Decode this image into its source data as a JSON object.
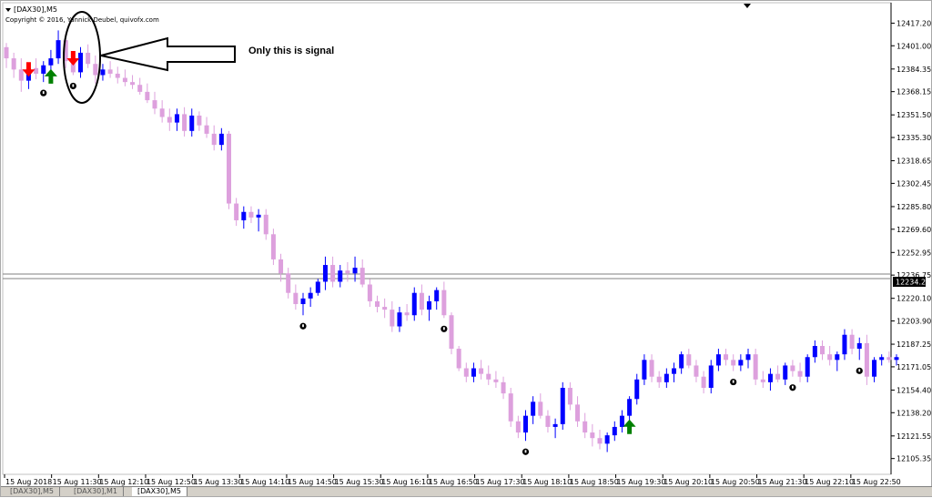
{
  "window": {
    "symbol_label": "[DAX30],M5",
    "copyright": "Copyright © 2016, Yannick Deubel, quivofx.com"
  },
  "annotation": {
    "text": "Only this is signal"
  },
  "tabs": [
    "[DAX30],M5",
    "[DAX30],M1",
    "[DAX30],M5"
  ],
  "colors": {
    "bear_candle": "#dda0dd",
    "bull_candle": "#0000ff",
    "up_arrow": "#008000",
    "down_arrow": "#ff0000",
    "horizontal_line": "#808080",
    "price_tag_bg": "#000000"
  },
  "chart_data": {
    "type": "candlestick",
    "title": "",
    "y_axis": {
      "side": "right",
      "range": [
        12096,
        12424
      ],
      "ticks": [
        "12417.20",
        "12401.00",
        "12384.35",
        "12368.15",
        "12351.50",
        "12335.30",
        "12318.65",
        "12302.45",
        "12285.80",
        "12269.60",
        "12252.95",
        "12236.75",
        "12220.10",
        "12203.90",
        "12187.25",
        "12171.05",
        "12154.40",
        "12138.20",
        "12121.55",
        "12105.35"
      ]
    },
    "x_axis": {
      "labels": [
        "15 Aug 2018",
        "15 Aug 11:30",
        "15 Aug 12:10",
        "15 Aug 12:50",
        "15 Aug 13:30",
        "15 Aug 14:10",
        "15 Aug 14:50",
        "15 Aug 15:30",
        "15 Aug 16:10",
        "15 Aug 16:50",
        "15 Aug 17:30",
        "15 Aug 18:10",
        "15 Aug 18:50",
        "15 Aug 19:30",
        "15 Aug 20:10",
        "15 Aug 20:50",
        "15 Aug 21:30",
        "15 Aug 22:10",
        "15 Aug 22:50"
      ]
    },
    "current_price": "12234.26",
    "horizontal_lines": [
      12237.5,
      12234.26
    ],
    "candles": [
      [
        12400,
        12403,
        12385,
        12392
      ],
      [
        12392,
        12396,
        12378,
        12384
      ],
      [
        12384,
        12392,
        12368,
        12376
      ],
      [
        12376,
        12388,
        12370,
        12385
      ],
      [
        12385,
        12392,
        12377,
        12381
      ],
      [
        12381,
        12390,
        12375,
        12387
      ],
      [
        12387,
        12398,
        12383,
        12392
      ],
      [
        12392,
        12412,
        12388,
        12405
      ],
      [
        12405,
        12410,
        12385,
        12390
      ],
      [
        12390,
        12396,
        12380,
        12382
      ],
      [
        12382,
        12400,
        12378,
        12396
      ],
      [
        12396,
        12402,
        12385,
        12388
      ],
      [
        12388,
        12394,
        12374,
        12380
      ],
      [
        12380,
        12388,
        12376,
        12384
      ],
      [
        12384,
        12390,
        12378,
        12381
      ],
      [
        12381,
        12386,
        12374,
        12378
      ],
      [
        12378,
        12384,
        12372,
        12375
      ],
      [
        12375,
        12380,
        12370,
        12373
      ],
      [
        12373,
        12378,
        12366,
        12368
      ],
      [
        12368,
        12374,
        12360,
        12362
      ],
      [
        12362,
        12368,
        12352,
        12356
      ],
      [
        12356,
        12362,
        12346,
        12350
      ],
      [
        12350,
        12356,
        12340,
        12346
      ],
      [
        12346,
        12356,
        12340,
        12352
      ],
      [
        12352,
        12357,
        12336,
        12340
      ],
      [
        12340,
        12356,
        12336,
        12351
      ],
      [
        12351,
        12354,
        12340,
        12344
      ],
      [
        12344,
        12350,
        12335,
        12338
      ],
      [
        12338,
        12344,
        12326,
        12330
      ],
      [
        12330,
        12342,
        12326,
        12338
      ],
      [
        12338,
        12340,
        12284,
        12288
      ],
      [
        12288,
        12292,
        12272,
        12276
      ],
      [
        12276,
        12286,
        12270,
        12282
      ],
      [
        12282,
        12286,
        12274,
        12278
      ],
      [
        12278,
        12284,
        12268,
        12280
      ],
      [
        12280,
        12284,
        12262,
        12266
      ],
      [
        12266,
        12270,
        12244,
        12248
      ],
      [
        12248,
        12252,
        12232,
        12238
      ],
      [
        12238,
        12242,
        12220,
        12224
      ],
      [
        12224,
        12230,
        12212,
        12216
      ],
      [
        12216,
        12224,
        12208,
        12220
      ],
      [
        12220,
        12228,
        12214,
        12224
      ],
      [
        12224,
        12234,
        12222,
        12232
      ],
      [
        12232,
        12250,
        12226,
        12244
      ],
      [
        12244,
        12250,
        12228,
        12232
      ],
      [
        12232,
        12244,
        12228,
        12240
      ],
      [
        12240,
        12246,
        12232,
        12238
      ],
      [
        12238,
        12250,
        12232,
        12242
      ],
      [
        12242,
        12248,
        12228,
        12230
      ],
      [
        12230,
        12234,
        12214,
        12218
      ],
      [
        12218,
        12222,
        12210,
        12214
      ],
      [
        12214,
        12220,
        12206,
        12212
      ],
      [
        12212,
        12218,
        12196,
        12200
      ],
      [
        12200,
        12214,
        12196,
        12210
      ],
      [
        12210,
        12216,
        12204,
        12208
      ],
      [
        12208,
        12228,
        12204,
        12224
      ],
      [
        12224,
        12230,
        12208,
        12212
      ],
      [
        12212,
        12222,
        12204,
        12218
      ],
      [
        12218,
        12228,
        12212,
        12226
      ],
      [
        12226,
        12232,
        12206,
        12208
      ],
      [
        12208,
        12210,
        12180,
        12184
      ],
      [
        12184,
        12186,
        12168,
        12170
      ],
      [
        12170,
        12174,
        12160,
        12164
      ],
      [
        12164,
        12174,
        12160,
        12170
      ],
      [
        12170,
        12176,
        12162,
        12166
      ],
      [
        12166,
        12172,
        12158,
        12162
      ],
      [
        12162,
        12168,
        12156,
        12160
      ],
      [
        12160,
        12164,
        12148,
        12152
      ],
      [
        12152,
        12156,
        12128,
        12132
      ],
      [
        12132,
        12136,
        12120,
        12124
      ],
      [
        12124,
        12140,
        12118,
        12136
      ],
      [
        12136,
        12150,
        12130,
        12146
      ],
      [
        12146,
        12152,
        12134,
        12136
      ],
      [
        12136,
        12140,
        12124,
        12128
      ],
      [
        12128,
        12134,
        12120,
        12130
      ],
      [
        12130,
        12160,
        12126,
        12156
      ],
      [
        12156,
        12160,
        12140,
        12144
      ],
      [
        12144,
        12150,
        12128,
        12132
      ],
      [
        12132,
        12138,
        12120,
        12124
      ],
      [
        12124,
        12130,
        12114,
        12120
      ],
      [
        12120,
        12126,
        12112,
        12116
      ],
      [
        12116,
        12124,
        12110,
        12122
      ],
      [
        12122,
        12132,
        12118,
        12128
      ],
      [
        12128,
        12140,
        12124,
        12136
      ],
      [
        12136,
        12150,
        12132,
        12148
      ],
      [
        12148,
        12166,
        12144,
        12162
      ],
      [
        12162,
        12180,
        12158,
        12176
      ],
      [
        12176,
        12180,
        12160,
        12164
      ],
      [
        12164,
        12168,
        12156,
        12160
      ],
      [
        12160,
        12170,
        12156,
        12166
      ],
      [
        12166,
        12174,
        12160,
        12170
      ],
      [
        12170,
        12182,
        12166,
        12180
      ],
      [
        12180,
        12184,
        12170,
        12172
      ],
      [
        12172,
        12176,
        12160,
        12164
      ],
      [
        12164,
        12168,
        12152,
        12156
      ],
      [
        12156,
        12176,
        12152,
        12172
      ],
      [
        12172,
        12184,
        12168,
        12180
      ],
      [
        12180,
        12184,
        12172,
        12176
      ],
      [
        12176,
        12180,
        12168,
        12172
      ],
      [
        12172,
        12180,
        12168,
        12176
      ],
      [
        12176,
        12184,
        12170,
        12180
      ],
      [
        12180,
        12184,
        12158,
        12162
      ],
      [
        12162,
        12168,
        12156,
        12160
      ],
      [
        12160,
        12170,
        12154,
        12166
      ],
      [
        12166,
        12172,
        12160,
        12162
      ],
      [
        12162,
        12174,
        12158,
        12172
      ],
      [
        12172,
        12176,
        12164,
        12168
      ],
      [
        12168,
        12174,
        12160,
        12164
      ],
      [
        12164,
        12180,
        12160,
        12178
      ],
      [
        12178,
        12190,
        12174,
        12186
      ],
      [
        12186,
        12190,
        12176,
        12180
      ],
      [
        12180,
        12186,
        12172,
        12176
      ],
      [
        12176,
        12182,
        12168,
        12180
      ],
      [
        12180,
        12198,
        12176,
        12194
      ],
      [
        12194,
        12198,
        12180,
        12184
      ],
      [
        12184,
        12192,
        12176,
        12188
      ],
      [
        12188,
        12194,
        12158,
        12164
      ],
      [
        12164,
        12178,
        12160,
        12176
      ],
      [
        12176,
        12180,
        12172,
        12178
      ],
      [
        12178,
        12182,
        12174,
        12176
      ],
      [
        12176,
        12180,
        12172,
        12178
      ]
    ],
    "signals": [
      {
        "type": "down-arrow",
        "index": 3
      },
      {
        "type": "up-arrow",
        "index": 6
      },
      {
        "type": "down-arrow",
        "index": 9
      },
      {
        "type": "up-arrow",
        "index": 84
      },
      {
        "type": "lock",
        "index": 5
      },
      {
        "type": "lock",
        "index": 9
      },
      {
        "type": "lock",
        "index": 40
      },
      {
        "type": "lock",
        "index": 59
      },
      {
        "type": "lock",
        "index": 70
      },
      {
        "type": "lock",
        "index": 98
      },
      {
        "type": "lock",
        "index": 106
      },
      {
        "type": "lock",
        "index": 115
      }
    ]
  }
}
